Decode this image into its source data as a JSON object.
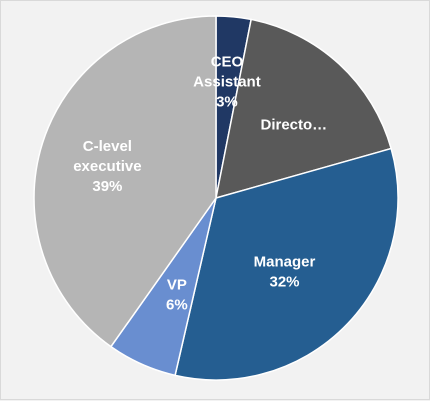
{
  "chart_data": {
    "type": "pie",
    "title": "",
    "start_angle_deg": 0,
    "direction": "clockwise",
    "slices": [
      {
        "label_lines": [
          "CEO",
          "Assistant"
        ],
        "value": 3,
        "percent_text": "3%",
        "color": "#203864"
      },
      {
        "label_lines": [
          "Directo…"
        ],
        "value": 17,
        "percent_text": "",
        "color": "#595959"
      },
      {
        "label_lines": [
          "Manager"
        ],
        "value": 32,
        "percent_text": "32%",
        "color": "#255e91"
      },
      {
        "label_lines": [
          "VP"
        ],
        "value": 6,
        "percent_text": "6%",
        "color": "#698ed0"
      },
      {
        "label_lines": [
          "C-level",
          "executive"
        ],
        "value": 39,
        "percent_text": "39%",
        "color": "#b5b5b5"
      }
    ]
  }
}
